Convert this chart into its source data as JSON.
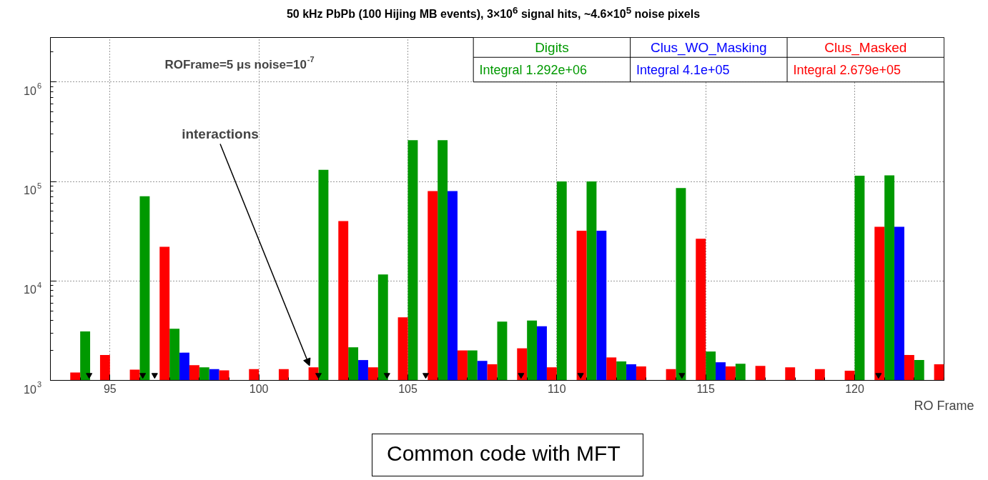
{
  "chart_data": {
    "type": "bar",
    "title": "50 kHz PbPb (100 Hijing MB events), 3×10$^{6}$ signal hits, ~4.6×10$^{5}$ noise pixels",
    "xlabel": "RO Frame",
    "x": [
      93.5,
      94.5,
      95.5,
      96.5,
      97.5,
      98.5,
      99.5,
      100.5,
      101.5,
      102.5,
      103.5,
      104.5,
      105.5,
      106.5,
      107.5,
      108.5,
      109.5,
      110.5,
      111.5,
      112.5,
      113.5,
      114.5,
      115.5,
      116.5,
      117.5,
      118.5,
      119.5,
      120.5,
      121.5,
      122.5
    ],
    "series": [
      {
        "name": "Digits",
        "color": "#009900",
        "values": [
          null,
          3100,
          null,
          71000,
          3300,
          1350,
          null,
          null,
          null,
          131000,
          2150,
          11600,
          260000,
          260000,
          2000,
          3900,
          4000,
          100000,
          100000,
          1550,
          null,
          86000,
          1950,
          1470,
          null,
          null,
          null,
          114000,
          115000,
          1600
        ]
      },
      {
        "name": "Clus_WO_Masking",
        "color": "#0000ff",
        "values": [
          null,
          null,
          null,
          null,
          1900,
          1300,
          null,
          null,
          null,
          null,
          1600,
          null,
          null,
          80000,
          1570,
          null,
          3500,
          null,
          32000,
          1450,
          null,
          null,
          1520,
          null,
          null,
          null,
          null,
          null,
          35000,
          null
        ]
      },
      {
        "name": "Clus_Masked",
        "color": "#ff0000",
        "values": [
          1200,
          1800,
          1280,
          22000,
          1420,
          1260,
          1300,
          1300,
          1350,
          40000,
          1350,
          4300,
          80000,
          2000,
          1450,
          2100,
          1350,
          32000,
          1700,
          1380,
          1300,
          26500,
          1380,
          1400,
          1350,
          1300,
          1250,
          35000,
          1800,
          1450
        ]
      },
      {
        "type": "scatter",
        "color": "#000000",
        "marker": "triangle",
        "x": [
          94.3,
          96.1,
          96.5,
          102.0,
          104.3,
          105.6,
          108.8,
          110.8,
          114.2,
          120.8
        ],
        "values": [
          1130,
          1130,
          1130,
          1130,
          1130,
          1130,
          1130,
          1130,
          1130,
          1130
        ]
      }
    ],
    "xlim": [
      93,
      123
    ],
    "xticks": [
      95,
      100,
      105,
      110,
      115,
      120
    ],
    "ylim": [
      1000,
      2800000
    ],
    "yticks": [
      {
        "value": 1000,
        "label": "10$^{3}$"
      },
      {
        "value": 10000,
        "label": "10$^{4}$"
      },
      {
        "value": 100000,
        "label": "10$^{5}$"
      },
      {
        "value": 1000000,
        "label": "10$^{6}$"
      }
    ],
    "log": "y",
    "grid": true,
    "legend": "top right",
    "annotations": [
      "ROFrame=5 μs noise=10$^{-7}$",
      {
        "text": "interactions",
        "x": 101.7,
        "y": 1400
      },
      "Integral   1.292e+06",
      "Integral      4.1e+05",
      "Integral   2.679e+05",
      "Common code with MFT"
    ]
  }
}
